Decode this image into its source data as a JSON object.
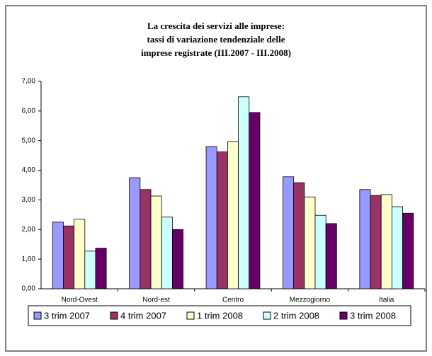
{
  "chart_data": {
    "type": "bar",
    "title": [
      "La crescita dei servizi alle imprese:",
      "tassi di  variazione tendenziale delle",
      "imprese registrate (III.2007 - III.2008)"
    ],
    "categories": [
      "Nord-Ovest",
      "Nord-est",
      "Centro",
      "Mezzogiorno",
      "Italia"
    ],
    "series": [
      {
        "name": "3 trim 2007",
        "color": "#9999ff",
        "values": [
          2.25,
          3.75,
          4.8,
          3.78,
          3.35
        ]
      },
      {
        "name": "4 trim 2007",
        "color": "#993366",
        "values": [
          2.12,
          3.35,
          4.62,
          3.58,
          3.15
        ]
      },
      {
        "name": "1 trim 2008",
        "color": "#ffffcc",
        "values": [
          2.35,
          3.13,
          4.97,
          3.1,
          3.18
        ]
      },
      {
        "name": "2 trim 2008",
        "color": "#ccffff",
        "values": [
          1.27,
          2.42,
          6.48,
          2.48,
          2.77
        ]
      },
      {
        "name": "3 trim 2008",
        "color": "#660066",
        "values": [
          1.37,
          2.0,
          5.95,
          2.2,
          2.55
        ]
      }
    ],
    "ylim": [
      0,
      7
    ],
    "yticks": [
      {
        "value": 0,
        "label": "0,00"
      },
      {
        "value": 1,
        "label": "1,00"
      },
      {
        "value": 2,
        "label": "2,00"
      },
      {
        "value": 3,
        "label": "3,00"
      },
      {
        "value": 4,
        "label": "4,00"
      },
      {
        "value": 5,
        "label": "5,00"
      },
      {
        "value": 6,
        "label": "6,00"
      },
      {
        "value": 7,
        "label": "7,00"
      }
    ],
    "grid": false,
    "legend": "bottom"
  }
}
